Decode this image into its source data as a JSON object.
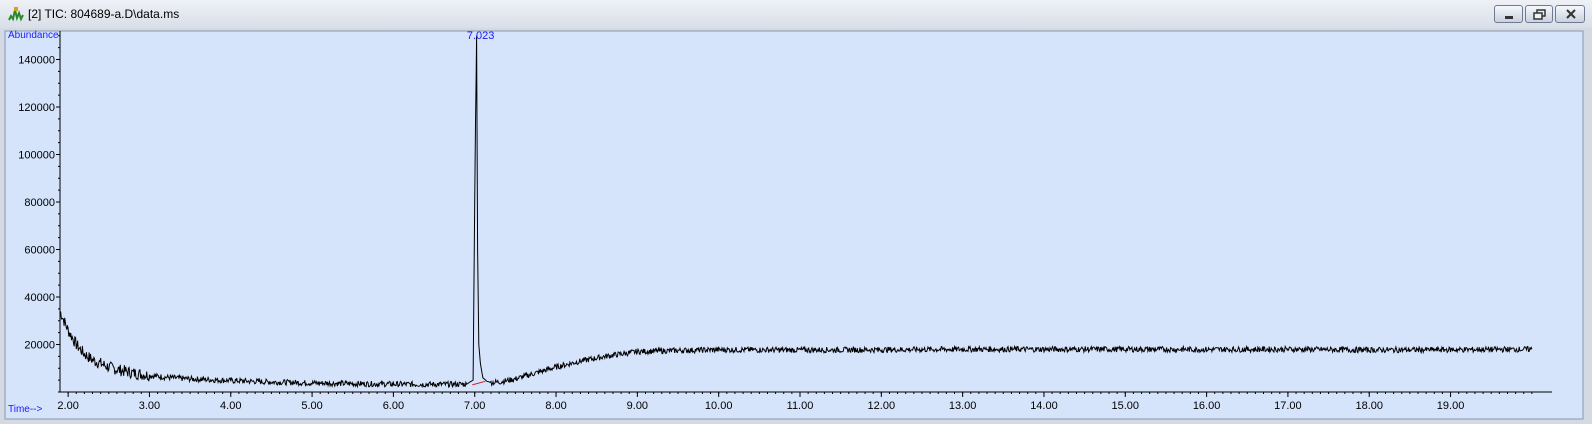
{
  "window": {
    "title": "[2] TIC: 804689-a.D\\data.ms",
    "icon": "chromatogram-app-icon",
    "buttons": [
      "minimize",
      "maximize",
      "close"
    ]
  },
  "chart_data": {
    "type": "line",
    "title": "",
    "xlabel": "Time-->",
    "ylabel": "Abundance",
    "xlim": [
      1.9,
      20.1
    ],
    "ylim": [
      0,
      152000
    ],
    "x_ticks": [
      2.0,
      3.0,
      4.0,
      5.0,
      6.0,
      7.0,
      8.0,
      9.0,
      10.0,
      11.0,
      12.0,
      13.0,
      14.0,
      15.0,
      16.0,
      17.0,
      18.0,
      19.0
    ],
    "x_tick_labels": [
      "2.00",
      "3.00",
      "4.00",
      "5.00",
      "6.00",
      "7.00",
      "8.00",
      "9.00",
      "10.00",
      "11.00",
      "12.00",
      "13.00",
      "14.00",
      "15.00",
      "16.00",
      "17.00",
      "18.00",
      "19.00"
    ],
    "y_ticks": [
      20000,
      40000,
      60000,
      80000,
      100000,
      120000,
      140000
    ],
    "y_tick_labels": [
      "20000",
      "40000",
      "60000",
      "80000",
      "100000",
      "120000",
      "140000"
    ],
    "grid": false,
    "peak_label": {
      "x": 7.023,
      "text": "7.023"
    },
    "series": [
      {
        "x": [
          1.9,
          2.0,
          2.1,
          2.2,
          2.3,
          2.4,
          2.5,
          2.6,
          2.8,
          3.0,
          3.2,
          3.5,
          4.0,
          4.5,
          5.0,
          5.5,
          6.0,
          6.5,
          6.9,
          6.98,
          7.0,
          7.01,
          7.023,
          7.035,
          7.05,
          7.07,
          7.1,
          7.15,
          7.2,
          7.3,
          7.5,
          7.8,
          8.0,
          8.3,
          8.6,
          9.0,
          9.5,
          10.0,
          11.0,
          12.0,
          13.0,
          14.0,
          15.0,
          16.0,
          17.0,
          18.0,
          19.0,
          20.0
        ],
        "y": [
          34000,
          26000,
          20000,
          16000,
          13500,
          12000,
          10500,
          9500,
          8000,
          7000,
          6200,
          5500,
          4800,
          4200,
          3800,
          3500,
          3300,
          3200,
          3300,
          5000,
          80000,
          113000,
          150000,
          60000,
          20000,
          12000,
          6000,
          4500,
          4000,
          4200,
          5500,
          8500,
          10500,
          13000,
          15000,
          17000,
          17500,
          17800,
          17700,
          17800,
          18000,
          18000,
          18000,
          17900,
          18000,
          17700,
          17800,
          18000
        ]
      }
    ]
  }
}
